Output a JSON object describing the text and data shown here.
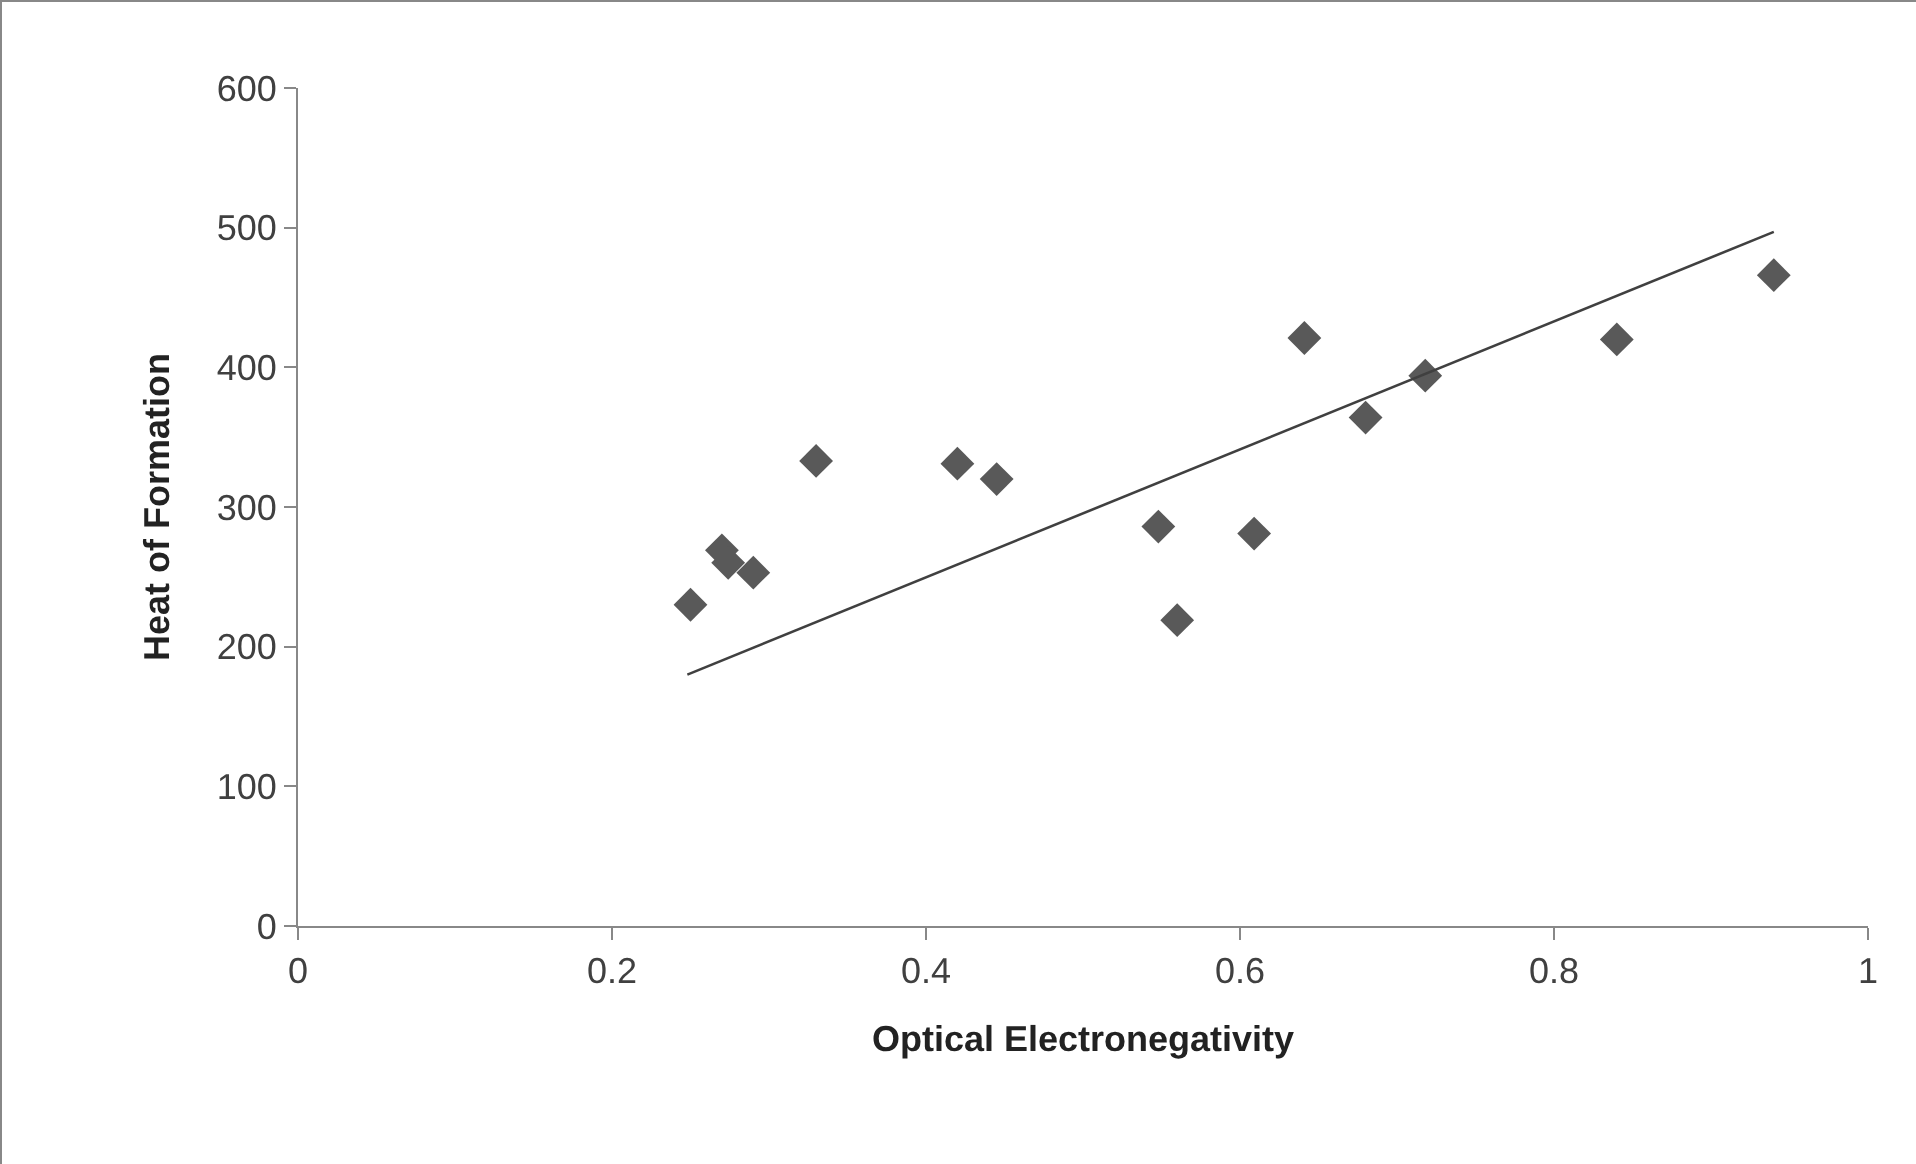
{
  "chart_data": {
    "type": "scatter",
    "xlabel": "Optical Electronegativity",
    "ylabel": "Heat of Formation",
    "xlim": [
      0,
      1
    ],
    "xticks": [
      0,
      0.2,
      0.4,
      0.6,
      0.8,
      1
    ],
    "ylim": [
      0,
      600
    ],
    "yticks": [
      0,
      100,
      200,
      300,
      400,
      500,
      600
    ],
    "grid": false,
    "marker": "diamond",
    "series": [
      {
        "color": "#595959",
        "x": [
          0.25,
          0.27,
          0.274,
          0.29,
          0.33,
          0.42,
          0.445,
          0.548,
          0.56,
          0.609,
          0.641,
          0.68,
          0.718,
          0.84,
          0.94
        ],
        "values": [
          230,
          269,
          260,
          253,
          333,
          331,
          320,
          286,
          219,
          281,
          421,
          364,
          394,
          420,
          466
        ]
      },
      {
        "type": "line",
        "color": "#404040",
        "line_style": "solid",
        "marker": "none",
        "x": [
          0.248,
          0.94
        ],
        "values": [
          180,
          497
        ]
      }
    ]
  }
}
